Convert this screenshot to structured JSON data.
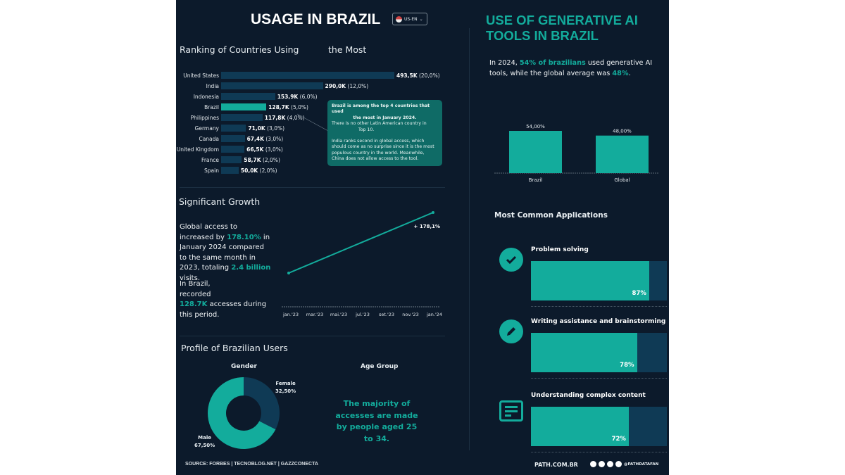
{
  "left": {
    "title": "USAGE IN BRAZIL",
    "lang_button": "US-EN",
    "ranking": {
      "title_part1": "Ranking of Countries Using",
      "title_part2": "the Most",
      "countries": [
        {
          "name": "United States",
          "value": 493.5,
          "value_label": "493,5K",
          "share": "(20,0%)"
        },
        {
          "name": "India",
          "value": 290.0,
          "value_label": "290,0K",
          "share": "(12,0%)"
        },
        {
          "name": "Indonesia",
          "value": 153.9,
          "value_label": "153,9K",
          "share": "(6,0%)"
        },
        {
          "name": "Brazil",
          "value": 128.7,
          "value_label": "128,7K",
          "share": "(5,0%)",
          "highlight": true
        },
        {
          "name": "Philippines",
          "value": 117.8,
          "value_label": "117,8K",
          "share": "(4,0%)"
        },
        {
          "name": "Germany",
          "value": 71.0,
          "value_label": "71,0K",
          "share": "(3,0%)"
        },
        {
          "name": "Canada",
          "value": 67.4,
          "value_label": "67,4K",
          "share": "(3,0%)"
        },
        {
          "name": "United Kingdom",
          "value": 66.5,
          "value_label": "66,5K",
          "share": "(3,0%)"
        },
        {
          "name": "France",
          "value": 58.7,
          "value_label": "58,7K",
          "share": "(2,0%)"
        },
        {
          "name": "Spain",
          "value": 50.0,
          "value_label": "50,0K",
          "share": "(2,0%)"
        }
      ],
      "tooltip": {
        "bold1": "Brazil is among the top 4 countries that used",
        "bold2": "the most in January 2024.",
        "line3": "There is no other Latin American country in",
        "line4": "Top 10.",
        "para2": "India ranks second in global access, which should come as no surprise since it is the most populous country in the world. Meanwhile, China does not allow access to the tool."
      }
    },
    "growth": {
      "title": "Significant Growth",
      "p1_a": "Global access to",
      "p1_b": "increased by ",
      "p1_pct": "178.10%",
      "p1_c": " in January 2024 compared to the same month in 2023, totaling ",
      "p1_visits": "2.4 billion",
      "p1_d": " visits.",
      "p2_a": "In Brazil,",
      "p2_b": "recorded",
      "p2_num": "128.7K",
      "p2_c": " accesses during this period.",
      "line_label": "+ 178,1%",
      "x_ticks": [
        "jan.'23",
        "mar.'23",
        "mai.'23",
        "jul.'23",
        "set.'23",
        "nov.'23",
        "jan.'24"
      ]
    },
    "profile": {
      "title": "Profile of Brazilian Users",
      "gender_title": "Gender",
      "female_label": "Female",
      "female_pct": "32,50%",
      "female_value": 32.5,
      "male_label": "Male",
      "male_pct": "67,50%",
      "age_title": "Age Group",
      "age_text": "The majority of accesses are made by people aged 25 to 34."
    },
    "source": "SOURCE: FORBES | TECNOBLOG.NET | GAZZCONECTA"
  },
  "right": {
    "title_line1": "USE OF GENERATIVE AI",
    "title_line2": "TOOLS IN BRAZIL",
    "intro_a": "In 2024, ",
    "intro_hl1": "54% of brazilians",
    "intro_b": " used generative AI tools, while the global average was ",
    "intro_hl2": "48%",
    "intro_c": ".",
    "compare": [
      {
        "name": "Brazil",
        "value": 54,
        "label": "54,00%"
      },
      {
        "name": "Global",
        "value": 48,
        "label": "48,00%"
      }
    ],
    "apps_title": "Most Common Applications",
    "apps": [
      {
        "label": "Problem solving",
        "value": 87,
        "pct": "87%",
        "icon": "check-circle-icon"
      },
      {
        "label": "Writing assistance and brainstorming",
        "value": 78,
        "pct": "78%",
        "icon": "pencil-icon"
      },
      {
        "label": "Understanding complex content",
        "value": 72,
        "pct": "72%",
        "icon": "document-text-icon"
      }
    ],
    "site": "PATH.COM.BR",
    "handle": "@PATHDATAFAN"
  },
  "colors": {
    "background": "#0c1a2b",
    "accent": "#13ac9c",
    "bar_dark": "#0f3a55"
  }
}
